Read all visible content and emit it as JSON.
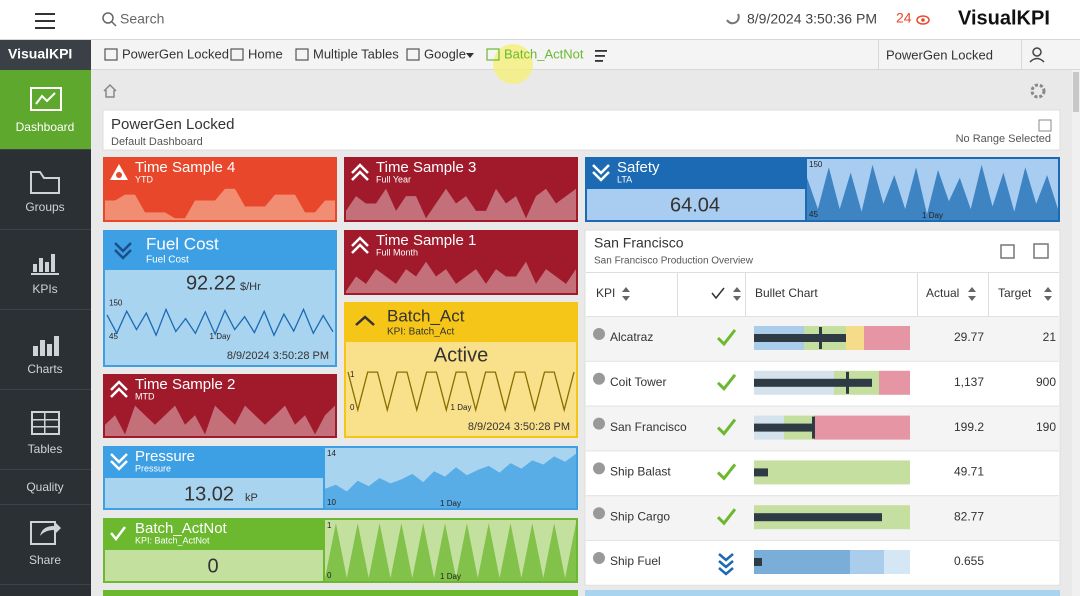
{
  "topbar": {
    "search": "Search",
    "datetime": "8/9/2024 3:50:36 PM",
    "alerts": "24",
    "brand": "VisualKPI"
  },
  "sidebar": {
    "logo": "VisualKPI",
    "items": [
      "Dashboard",
      "Groups",
      "KPIs",
      "Charts",
      "Tables",
      "Quality",
      "Share"
    ]
  },
  "nav": {
    "items": [
      "PowerGen Locked",
      "Home",
      "Multiple Tables",
      "Google",
      "Batch_ActNot"
    ],
    "profile": "PowerGen Locked"
  },
  "dashboard": {
    "title": "PowerGen Locked",
    "subtitle": "Default Dashboard",
    "range": "No Range Selected"
  },
  "tiles": [
    {
      "name": "Time Sample 4",
      "sub": "YTD",
      "color": "#e8472b",
      "light": "#f3a48c",
      "spark": [
        0.5,
        0.5,
        0.6,
        0.6,
        0.3,
        0.3,
        0.3,
        0.2,
        0.2,
        0.5,
        0.5,
        0.5,
        0.7,
        0.7,
        0.4,
        0.4,
        0.4,
        0.6,
        0.6,
        0.6,
        0.3,
        0.3,
        0.5,
        0.5
      ]
    },
    {
      "name": "Time Sample 3",
      "sub": "Full Year",
      "color": "#a11a2c",
      "light": "#cf8e95",
      "spark": [
        0.4,
        0.6,
        0.5,
        0.5,
        0.7,
        0.4,
        0.6,
        0.6,
        0.3,
        0.5,
        0.7,
        0.5,
        0.6,
        0.4,
        0.4,
        0.7,
        0.5,
        0.6,
        0.3,
        0.6,
        0.7,
        0.5,
        0.6,
        0.7
      ]
    },
    {
      "name": "Safety",
      "sub": "LTA",
      "value": "64.04",
      "color": "#1b6ab3",
      "light": "#a9cdf0",
      "ylim": [
        45,
        150
      ],
      "yticks": [
        45,
        150
      ],
      "period": "1 Day",
      "spark": [
        120,
        60,
        140,
        60,
        130,
        55,
        145,
        70,
        125,
        60,
        140,
        50,
        135,
        75,
        120,
        60,
        145,
        65,
        130,
        55,
        140,
        70,
        125,
        60
      ]
    },
    {
      "name": "Fuel Cost",
      "sub": "Fuel Cost",
      "value": "92.22",
      "unit": "$/Hr",
      "color": "#3ea0e4",
      "light": "#a9d4f0",
      "ylim": [
        45,
        150
      ],
      "yticks": [
        45,
        150
      ],
      "period": "1 Day",
      "time": "8/9/2024 3:50:28 PM",
      "spark": [
        110,
        60,
        120,
        70,
        115,
        55,
        125,
        65,
        100,
        60,
        118,
        58,
        122,
        70,
        105,
        62,
        120,
        55,
        112,
        66,
        125,
        60,
        108,
        64
      ]
    },
    {
      "name": "Time Sample 1",
      "sub": "Full Month",
      "color": "#a11a2c",
      "light": "#cf8e95",
      "spark": [
        0.3,
        0.5,
        0.4,
        0.6,
        0.5,
        0.4,
        0.6,
        0.5,
        0.7,
        0.5,
        0.6,
        0.4,
        0.5,
        0.6,
        0.4,
        0.6,
        0.5,
        0.5,
        0.7,
        0.4,
        0.6,
        0.5,
        0.4,
        0.6
      ]
    },
    {
      "name": "Batch_Act",
      "sub": "KPI: Batch_Act",
      "value": "Active",
      "color": "#f5c518",
      "light": "#f9e08a",
      "ylim": [
        0,
        1
      ],
      "yticks": [
        0,
        1
      ],
      "period": "1 Day",
      "time": "8/9/2024 3:50:28 PM",
      "spark": [
        1,
        0,
        1,
        1,
        0,
        1,
        1,
        0,
        1,
        1,
        0,
        1,
        1,
        0,
        1,
        1,
        0,
        1,
        1,
        0,
        1,
        1,
        0,
        1
      ]
    },
    {
      "name": "Time Sample 2",
      "sub": "MTD",
      "color": "#a11a2c",
      "light": "#cf8e95",
      "spark": [
        0.4,
        0.5,
        0.3,
        0.6,
        0.5,
        0.4,
        0.5,
        0.6,
        0.4,
        0.5,
        0.3,
        0.6,
        0.5,
        0.4,
        0.6,
        0.5,
        0.4,
        0.5,
        0.6,
        0.4,
        0.5,
        0.3,
        0.5,
        0.6
      ]
    },
    {
      "name": "Pressure",
      "sub": "Pressure",
      "value": "13.02",
      "unit": "kP",
      "color": "#3ea0e4",
      "light": "#a9d4f0",
      "ylim": [
        10,
        14
      ],
      "yticks": [
        10,
        14
      ],
      "period": "1 Day",
      "spark": [
        11.2,
        11.5,
        11.0,
        11.8,
        11.4,
        12.0,
        11.6,
        11.9,
        12.3,
        11.7,
        12.5,
        12.1,
        12.8,
        12.2,
        12.6,
        12.9,
        12.4,
        13.1,
        12.7,
        13.3,
        13.0,
        13.6,
        13.2,
        13.8
      ]
    },
    {
      "name": "Batch_ActNot",
      "sub": "KPI: Batch_ActNot",
      "value": "0",
      "color": "#6cb82f",
      "light": "#c3e09f",
      "ylim": [
        0,
        1
      ],
      "yticks": [
        0,
        1
      ],
      "period": "1 Day",
      "spark": [
        0,
        1,
        0,
        1,
        0,
        1,
        0,
        1,
        0,
        1,
        0,
        1,
        0,
        1,
        0,
        1,
        0,
        1,
        0,
        1,
        0,
        1,
        0,
        1
      ]
    }
  ],
  "table": {
    "title": "San Francisco",
    "subtitle": "San Francisco Production Overview",
    "columns": [
      "KPI",
      "Bullet Chart",
      "Actual",
      "Target"
    ],
    "rows": [
      {
        "kpi": "Alcatraz",
        "actual": "29.77",
        "target": "21"
      },
      {
        "kpi": "Coit Tower",
        "actual": "1,137",
        "target": "900"
      },
      {
        "kpi": "San Francisco",
        "actual": "199.2",
        "target": "190"
      },
      {
        "kpi": "Ship Balast",
        "actual": "49.71"
      },
      {
        "kpi": "Ship Cargo",
        "actual": "82.77"
      },
      {
        "kpi": "Ship Fuel",
        "actual": "0.655"
      }
    ]
  }
}
